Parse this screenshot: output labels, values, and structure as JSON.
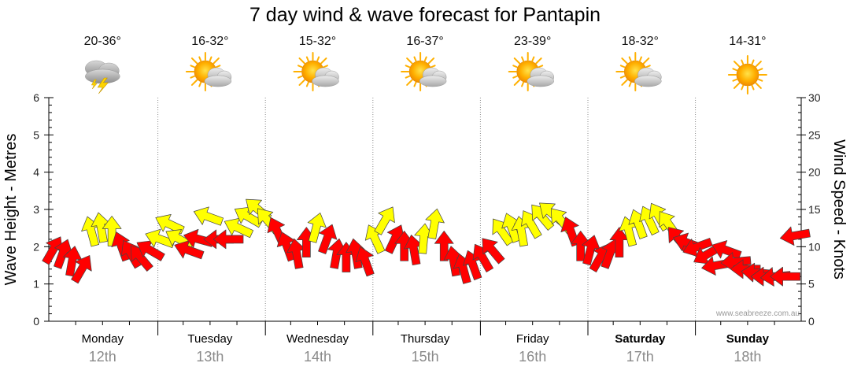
{
  "chart_data": {
    "type": "scatter",
    "title": "7 day wind & wave forecast for Pantapin",
    "y_left_label": "Wave Height - Metres",
    "y_right_label": "Wind Speed - Knots",
    "y_left_ticks": [
      "0",
      "1",
      "2",
      "3",
      "4",
      "5",
      "6"
    ],
    "y_right_ticks": [
      "0",
      "5",
      "10",
      "15",
      "20",
      "25",
      "30"
    ],
    "y_left_range": [
      0,
      6
    ],
    "y_right_range": [
      0,
      30
    ],
    "grid": true,
    "credit": "www.seabreeze.com.au",
    "days": [
      {
        "name": "Monday",
        "date": "12th",
        "temp": "20-36°",
        "icon": "thunderstorm-icon",
        "bold": false
      },
      {
        "name": "Tuesday",
        "date": "13th",
        "temp": "16-32°",
        "icon": "partly-cloudy-icon",
        "bold": false
      },
      {
        "name": "Wednesday",
        "date": "14th",
        "temp": "15-32°",
        "icon": "partly-cloudy-icon",
        "bold": false
      },
      {
        "name": "Thursday",
        "date": "15th",
        "temp": "16-37°",
        "icon": "partly-cloudy-icon",
        "bold": false
      },
      {
        "name": "Friday",
        "date": "16th",
        "temp": "23-39°",
        "icon": "partly-cloudy-icon",
        "bold": false
      },
      {
        "name": "Saturday",
        "date": "17th",
        "temp": "18-32°",
        "icon": "partly-cloudy-icon",
        "bold": true
      },
      {
        "name": "Sunday",
        "date": "18th",
        "temp": "14-31°",
        "icon": "sunny-icon",
        "bold": true
      }
    ],
    "series": [
      {
        "name": "wind",
        "colors": {
          "light": "#ffff00",
          "strong": "#ff0000",
          "outline": "#444444"
        },
        "points": [
          [
            0.0,
            9.5,
            300,
            0
          ],
          [
            0.09,
            9.0,
            290,
            0
          ],
          [
            0.18,
            8.0,
            280,
            0
          ],
          [
            0.27,
            7.0,
            300,
            0
          ],
          [
            0.36,
            12.0,
            255,
            1
          ],
          [
            0.45,
            12.5,
            260,
            1
          ],
          [
            0.55,
            12.0,
            270,
            1
          ],
          [
            0.64,
            10.0,
            250,
            0
          ],
          [
            0.73,
            9.0,
            240,
            0
          ],
          [
            0.82,
            8.5,
            230,
            0
          ],
          [
            0.91,
            9.5,
            210,
            0
          ],
          [
            1.0,
            11.0,
            200,
            1
          ],
          [
            1.09,
            13.0,
            205,
            1
          ],
          [
            1.18,
            11.0,
            210,
            1
          ],
          [
            1.27,
            9.5,
            200,
            0
          ],
          [
            1.36,
            11.0,
            195,
            0
          ],
          [
            1.45,
            14.0,
            200,
            1
          ],
          [
            1.55,
            11.0,
            180,
            0
          ],
          [
            1.64,
            11.0,
            180,
            0
          ],
          [
            1.73,
            12.5,
            205,
            1
          ],
          [
            1.82,
            14.0,
            210,
            1
          ],
          [
            1.91,
            15.0,
            220,
            1
          ],
          [
            2.0,
            13.5,
            230,
            1
          ],
          [
            2.09,
            12.0,
            245,
            0
          ],
          [
            2.18,
            10.0,
            250,
            0
          ],
          [
            2.27,
            9.0,
            260,
            0
          ],
          [
            2.36,
            10.5,
            270,
            0
          ],
          [
            2.45,
            12.5,
            285,
            1
          ],
          [
            2.55,
            11.0,
            290,
            0
          ],
          [
            2.64,
            9.0,
            280,
            0
          ],
          [
            2.73,
            8.5,
            270,
            0
          ],
          [
            2.82,
            9.0,
            260,
            0
          ],
          [
            2.91,
            8.0,
            250,
            0
          ],
          [
            3.0,
            11.0,
            245,
            1
          ],
          [
            3.09,
            13.5,
            300,
            1
          ],
          [
            3.18,
            11.0,
            295,
            0
          ],
          [
            3.27,
            10.0,
            270,
            0
          ],
          [
            3.36,
            9.5,
            260,
            0
          ],
          [
            3.45,
            11.0,
            275,
            1
          ],
          [
            3.55,
            13.0,
            280,
            1
          ],
          [
            3.64,
            10.0,
            270,
            0
          ],
          [
            3.73,
            8.0,
            260,
            0
          ],
          [
            3.82,
            7.0,
            255,
            0
          ],
          [
            3.91,
            7.5,
            250,
            0
          ],
          [
            4.0,
            8.5,
            240,
            0
          ],
          [
            4.09,
            9.5,
            230,
            0
          ],
          [
            4.18,
            12.0,
            235,
            1
          ],
          [
            4.27,
            12.5,
            250,
            1
          ],
          [
            4.36,
            12.0,
            260,
            1
          ],
          [
            4.45,
            13.0,
            240,
            1
          ],
          [
            4.55,
            14.0,
            230,
            1
          ],
          [
            4.64,
            14.5,
            220,
            1
          ],
          [
            4.73,
            13.5,
            230,
            1
          ],
          [
            4.82,
            12.0,
            250,
            0
          ],
          [
            4.91,
            10.0,
            270,
            0
          ],
          [
            5.0,
            9.5,
            285,
            0
          ],
          [
            5.09,
            8.5,
            300,
            0
          ],
          [
            5.18,
            9.0,
            290,
            0
          ],
          [
            5.27,
            10.5,
            270,
            0
          ],
          [
            5.36,
            12.0,
            255,
            1
          ],
          [
            5.45,
            13.0,
            250,
            1
          ],
          [
            5.55,
            13.5,
            245,
            1
          ],
          [
            5.64,
            14.0,
            240,
            1
          ],
          [
            5.73,
            13.0,
            235,
            1
          ],
          [
            5.82,
            11.0,
            230,
            0
          ],
          [
            5.91,
            10.5,
            200,
            0
          ],
          [
            6.0,
            10.0,
            160,
            0
          ],
          [
            6.09,
            9.0,
            150,
            0
          ],
          [
            6.18,
            7.5,
            170,
            0
          ],
          [
            6.27,
            9.5,
            200,
            0
          ],
          [
            6.36,
            8.0,
            175,
            0
          ],
          [
            6.45,
            7.0,
            180,
            0
          ],
          [
            6.55,
            6.5,
            185,
            0
          ],
          [
            6.64,
            6.0,
            180,
            0
          ],
          [
            6.73,
            6.0,
            175,
            0
          ],
          [
            6.82,
            6.0,
            180,
            0
          ],
          [
            6.91,
            11.5,
            170,
            0
          ]
        ]
      }
    ]
  }
}
